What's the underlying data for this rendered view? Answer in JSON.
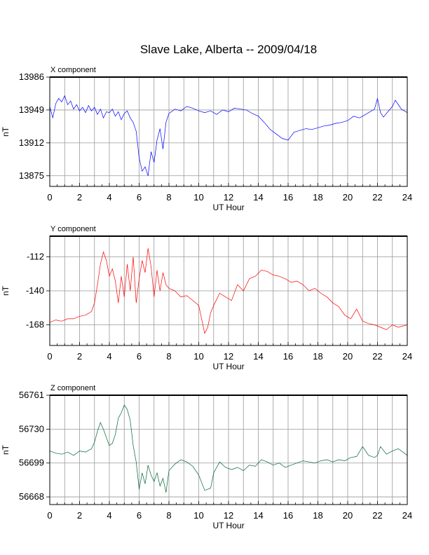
{
  "title": "Slave Lake, Alberta -- 2009/04/18",
  "chart_data": [
    {
      "type": "line",
      "panel_label": "X component",
      "xlabel": "UT Hour",
      "ylabel": "nT",
      "xlim": [
        0,
        24
      ],
      "ylim": [
        13863,
        13986
      ],
      "xticks": [
        0,
        2,
        4,
        6,
        8,
        10,
        12,
        14,
        16,
        18,
        20,
        22,
        24
      ],
      "yticks": [
        13875,
        13912,
        13949,
        13986
      ],
      "grid": true,
      "color": "#0000ff",
      "x": [
        0,
        0.2,
        0.4,
        0.6,
        0.8,
        1.0,
        1.2,
        1.4,
        1.6,
        1.8,
        2.0,
        2.2,
        2.4,
        2.6,
        2.8,
        3.0,
        3.2,
        3.4,
        3.6,
        3.8,
        4.0,
        4.2,
        4.4,
        4.6,
        4.8,
        5.0,
        5.2,
        5.4,
        5.6,
        5.8,
        6.0,
        6.2,
        6.4,
        6.6,
        6.8,
        7.0,
        7.2,
        7.4,
        7.6,
        7.8,
        8.0,
        8.4,
        8.8,
        9.2,
        9.6,
        10.0,
        10.4,
        10.8,
        11.2,
        11.6,
        12.0,
        12.4,
        12.8,
        13.2,
        13.6,
        14.0,
        14.4,
        14.8,
        15.2,
        15.6,
        16.0,
        16.4,
        16.8,
        17.2,
        17.6,
        18.0,
        18.4,
        18.8,
        19.2,
        19.6,
        20.0,
        20.4,
        20.8,
        21.2,
        21.6,
        21.8,
        22.0,
        22.2,
        22.4,
        22.8,
        23.0,
        23.2,
        23.6,
        24.0
      ],
      "y": [
        13953,
        13940,
        13956,
        13962,
        13958,
        13965,
        13955,
        13959,
        13950,
        13955,
        13948,
        13952,
        13946,
        13954,
        13948,
        13952,
        13944,
        13950,
        13940,
        13947,
        13946,
        13950,
        13942,
        13947,
        13938,
        13945,
        13948,
        13940,
        13935,
        13925,
        13895,
        13880,
        13885,
        13875,
        13902,
        13890,
        13915,
        13928,
        13905,
        13935,
        13945,
        13950,
        13948,
        13953,
        13951,
        13948,
        13946,
        13948,
        13944,
        13949,
        13947,
        13951,
        13950,
        13949,
        13945,
        13942,
        13935,
        13927,
        13922,
        13917,
        13915,
        13924,
        13926,
        13928,
        13927,
        13929,
        13931,
        13932,
        13934,
        13935,
        13937,
        13942,
        13940,
        13944,
        13948,
        13950,
        13962,
        13946,
        13941,
        13949,
        13953,
        13960,
        13950,
        13946
      ]
    },
    {
      "type": "line",
      "panel_label": "Y component",
      "xlabel": "UT Hour",
      "ylabel": "nT",
      "xlim": [
        0,
        24
      ],
      "ylim": [
        -185,
        -95
      ],
      "xticks": [
        0,
        2,
        4,
        6,
        8,
        10,
        12,
        14,
        16,
        18,
        20,
        22,
        24
      ],
      "yticks": [
        -112,
        -140,
        -168
      ],
      "grid": true,
      "color": "#ff0000",
      "x": [
        0,
        0.4,
        0.8,
        1.2,
        1.6,
        2.0,
        2.4,
        2.8,
        3.0,
        3.2,
        3.4,
        3.6,
        3.8,
        4.0,
        4.2,
        4.4,
        4.6,
        4.8,
        5.0,
        5.2,
        5.4,
        5.6,
        5.8,
        6.0,
        6.2,
        6.4,
        6.6,
        6.8,
        7.0,
        7.2,
        7.4,
        7.6,
        7.8,
        8.0,
        8.4,
        8.8,
        9.2,
        9.6,
        10.0,
        10.4,
        10.6,
        10.8,
        11.0,
        11.4,
        11.8,
        12.2,
        12.6,
        13.0,
        13.4,
        13.8,
        14.2,
        14.6,
        15.0,
        15.4,
        15.8,
        16.2,
        16.6,
        17.0,
        17.4,
        17.8,
        18.2,
        18.6,
        19.0,
        19.4,
        19.8,
        20.2,
        20.6,
        21.0,
        21.4,
        21.8,
        22.2,
        22.6,
        23.0,
        23.4,
        24.0
      ],
      "y": [
        -166,
        -164,
        -165,
        -163,
        -163,
        -161,
        -160,
        -157,
        -150,
        -135,
        -118,
        -108,
        -115,
        -128,
        -122,
        -132,
        -150,
        -128,
        -145,
        -118,
        -140,
        -112,
        -150,
        -130,
        -115,
        -125,
        -105,
        -120,
        -145,
        -123,
        -140,
        -125,
        -135,
        -138,
        -140,
        -145,
        -144,
        -148,
        -152,
        -175,
        -170,
        -158,
        -152,
        -142,
        -145,
        -148,
        -135,
        -140,
        -130,
        -128,
        -123,
        -124,
        -127,
        -128,
        -130,
        -133,
        -132,
        -135,
        -140,
        -138,
        -142,
        -145,
        -150,
        -153,
        -160,
        -163,
        -155,
        -165,
        -167,
        -168,
        -170,
        -172,
        -168,
        -170,
        -168
      ]
    },
    {
      "type": "line",
      "panel_label": "Z component",
      "xlabel": "UT Hour",
      "ylabel": "nT",
      "xlim": [
        0,
        24
      ],
      "ylim": [
        66,
        760
      ],
      "xticks": [
        0,
        2,
        4,
        6,
        8,
        10,
        12,
        14,
        16,
        18,
        20,
        22,
        24
      ],
      "yticks": [
        56668,
        56699,
        56730,
        56761
      ],
      "grid": true,
      "color": "#006633",
      "x": [
        0,
        0.4,
        0.8,
        1.2,
        1.6,
        2.0,
        2.4,
        2.8,
        3.0,
        3.2,
        3.4,
        3.6,
        3.8,
        4.0,
        4.2,
        4.4,
        4.6,
        4.8,
        5.0,
        5.2,
        5.4,
        5.6,
        5.8,
        6.0,
        6.2,
        6.4,
        6.6,
        6.8,
        7.0,
        7.2,
        7.4,
        7.6,
        7.8,
        8.0,
        8.4,
        8.8,
        9.2,
        9.6,
        10.0,
        10.4,
        10.8,
        11.0,
        11.4,
        11.8,
        12.2,
        12.6,
        13.0,
        13.4,
        13.8,
        14.2,
        14.6,
        15.0,
        15.4,
        15.8,
        16.2,
        16.6,
        17.0,
        17.4,
        17.8,
        18.2,
        18.6,
        19.0,
        19.4,
        19.8,
        20.2,
        20.6,
        21.0,
        21.4,
        21.8,
        22.0,
        22.2,
        22.6,
        23.0,
        23.4,
        24.0
      ],
      "y": [
        56710,
        56708,
        56707,
        56709,
        56706,
        56710,
        56709,
        56712,
        56718,
        56728,
        56736,
        56730,
        56722,
        56715,
        56717,
        56725,
        56740,
        56745,
        56752,
        56748,
        56738,
        56715,
        56700,
        56675,
        56690,
        56680,
        56697,
        56688,
        56682,
        56690,
        56678,
        56685,
        56672,
        56692,
        56698,
        56702,
        56700,
        56696,
        56688,
        56674,
        56676,
        56690,
        56700,
        56695,
        56693,
        56695,
        56692,
        56697,
        56696,
        56702,
        56700,
        56697,
        56699,
        56695,
        56697,
        56699,
        56701,
        56700,
        56699,
        56701,
        56702,
        56700,
        56702,
        56701,
        56704,
        56705,
        56714,
        56706,
        56704,
        56706,
        56714,
        56707,
        56710,
        56712,
        56706
      ]
    }
  ]
}
